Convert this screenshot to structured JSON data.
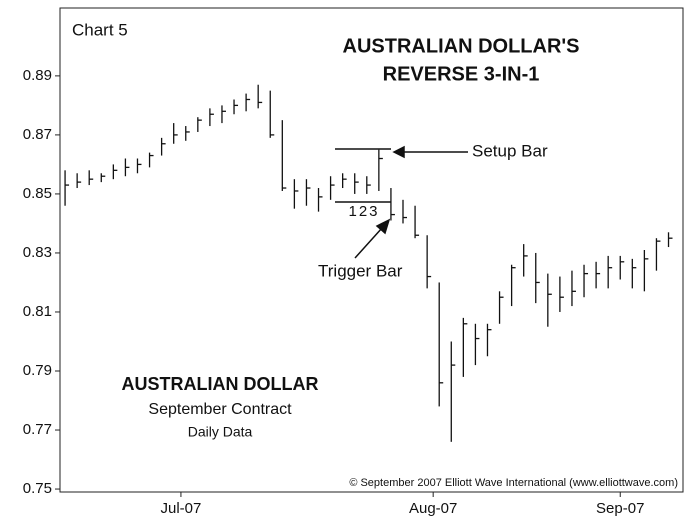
{
  "chart_data": {
    "type": "hlc",
    "label": "Chart 5",
    "title": [
      "AUSTRALIAN DOLLAR'S",
      "REVERSE 3-IN-1"
    ],
    "annotations": {
      "setup": "Setup Bar",
      "trigger": "Trigger Bar",
      "count": "123"
    },
    "legend_box": {
      "title": "AUSTRALIAN DOLLAR",
      "subtitle": "September Contract",
      "note": "Daily Data"
    },
    "copyright": "© September 2007 Elliott Wave International (www.elliottwave.com)",
    "color": "#111111",
    "categories": [
      null,
      null,
      null,
      null,
      null,
      null,
      null,
      null,
      null,
      null,
      null,
      null,
      null,
      null,
      null,
      null,
      null,
      null,
      null,
      null,
      null,
      null,
      null,
      null,
      null,
      null,
      null,
      null,
      null,
      null,
      null,
      null,
      null,
      null,
      null,
      null,
      null,
      null,
      null,
      null,
      null,
      null,
      null,
      null,
      null,
      null,
      null,
      null,
      null,
      null,
      null
    ],
    "high": [
      0.858,
      0.857,
      0.858,
      0.857,
      0.86,
      0.862,
      0.862,
      0.864,
      0.869,
      0.874,
      0.873,
      0.876,
      0.879,
      0.88,
      0.882,
      0.884,
      0.887,
      0.885,
      0.875,
      0.855,
      0.855,
      0.852,
      0.856,
      0.857,
      0.857,
      0.856,
      0.865,
      0.852,
      0.848,
      0.846,
      0.836,
      0.82,
      0.8,
      0.808,
      0.806,
      0.806,
      0.817,
      0.826,
      0.833,
      0.83,
      0.823,
      0.822,
      0.824,
      0.826,
      0.827,
      0.829,
      0.829,
      0.828,
      0.831,
      0.835,
      0.837
    ],
    "low": [
      0.846,
      0.852,
      0.853,
      0.854,
      0.855,
      0.856,
      0.857,
      0.859,
      0.863,
      0.867,
      0.868,
      0.871,
      0.873,
      0.874,
      0.877,
      0.878,
      0.879,
      0.869,
      0.851,
      0.845,
      0.846,
      0.844,
      0.848,
      0.852,
      0.85,
      0.85,
      0.851,
      0.841,
      0.84,
      0.835,
      0.818,
      0.778,
      0.766,
      0.788,
      0.792,
      0.795,
      0.806,
      0.812,
      0.822,
      0.813,
      0.805,
      0.81,
      0.812,
      0.815,
      0.818,
      0.818,
      0.821,
      0.818,
      0.817,
      0.824,
      0.832
    ],
    "close": [
      0.853,
      0.854,
      0.855,
      0.856,
      0.858,
      0.859,
      0.86,
      0.863,
      0.867,
      0.87,
      0.871,
      0.875,
      0.877,
      0.878,
      0.88,
      0.882,
      0.881,
      0.87,
      0.852,
      0.851,
      0.852,
      0.849,
      0.853,
      0.855,
      0.854,
      0.853,
      0.862,
      0.843,
      0.842,
      0.836,
      0.822,
      0.786,
      0.792,
      0.806,
      0.801,
      0.804,
      0.815,
      0.825,
      0.829,
      0.82,
      0.816,
      0.815,
      0.817,
      0.823,
      0.823,
      0.825,
      0.827,
      0.825,
      0.828,
      0.834,
      0.835
    ],
    "xlim": [
      -0.42,
      51.2
    ],
    "xticks": [
      {
        "value": 9.6,
        "label": "Jul-07"
      },
      {
        "value": 30.5,
        "label": "Aug-07"
      },
      {
        "value": 46,
        "label": "Sep-07"
      }
    ],
    "ylim": [
      0.749,
      0.913
    ],
    "yticks": [
      0.75,
      0.77,
      0.79,
      0.81,
      0.83,
      0.85,
      0.87,
      0.89
    ]
  }
}
